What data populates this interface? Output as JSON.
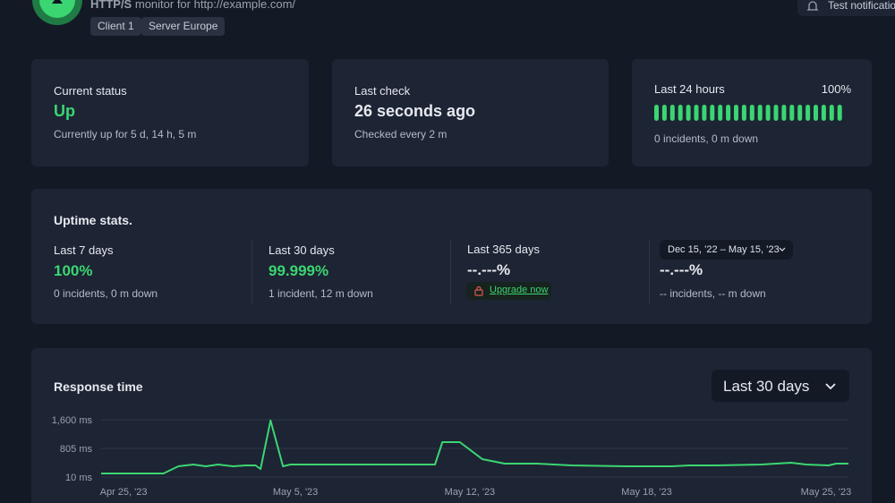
{
  "header": {
    "monitor_type": "HTTP/S",
    "monitor_desc": "monitor for http://example.com/",
    "tags": [
      "Client 1",
      "Server Europe"
    ],
    "button": "Test notification"
  },
  "status_cards": [
    {
      "label": "Current status",
      "value": "Up",
      "detail": "Currently up for 5 d, 14 h, 5 m"
    },
    {
      "label": "Last check",
      "value": "26 seconds ago",
      "detail": "Checked every 2 m"
    },
    {
      "label": "Last 24 hours",
      "percent": "100%",
      "detail": "0 incidents, 0 m down"
    }
  ],
  "uptime_stats": {
    "title": "Uptime stats.",
    "periods": [
      {
        "label": "Last 7 days",
        "value": "100%",
        "detail": "0 incidents, 0 m down"
      },
      {
        "label": "Last 30 days",
        "value": "99.999%",
        "detail": "1 incident, 12 m down"
      },
      {
        "label": "Last 365 days",
        "value": "--.---%",
        "link": "Upgrade now"
      },
      {
        "label": "Dec 15, ’22 – May 15, ’23",
        "value": "--.---%",
        "detail": "-- incidents, -- m down"
      }
    ]
  },
  "response_time": {
    "title": "Response time",
    "range": "Last 30 days",
    "chart": {
      "type": "line",
      "color": "#3bd671",
      "grid": true,
      "x": [
        0,
        2.5,
        3.1,
        3.7,
        4.2,
        4.7,
        5.3,
        5.8,
        6.2,
        6.4,
        6.8,
        7.3,
        7.6,
        10.3,
        13.2,
        13.4,
        13.7,
        14.4,
        15.3,
        16.2,
        17.5,
        18.9,
        21.1,
        22.9,
        23.6,
        24.7,
        26.5,
        27.7,
        28.3,
        29.2,
        29.5,
        30
      ],
      "values": [
        109,
        109,
        308,
        358,
        308,
        358,
        308,
        333,
        333,
        234,
        1580,
        308,
        358,
        358,
        358,
        358,
        979,
        979,
        507,
        383,
        383,
        333,
        308,
        308,
        333,
        333,
        358,
        407,
        358,
        333,
        383,
        383
      ],
      "xlim": [
        0,
        30
      ],
      "xticks": [
        {
          "value": 0.9,
          "label": "Apr 25, '23"
        },
        {
          "value": 7.8,
          "label": "May 5, '23"
        },
        {
          "value": 14.8,
          "label": "May 12, '23"
        },
        {
          "value": 21.9,
          "label": "May 18, '23"
        },
        {
          "value": 29.1,
          "label": "May 25, '23"
        }
      ],
      "ylim": [
        10,
        1600
      ],
      "yticks": [
        {
          "value": 1600,
          "label": "1,600 ms"
        },
        {
          "value": 805,
          "label": "805 ms"
        },
        {
          "value": 10,
          "label": "10 ms"
        }
      ]
    }
  }
}
